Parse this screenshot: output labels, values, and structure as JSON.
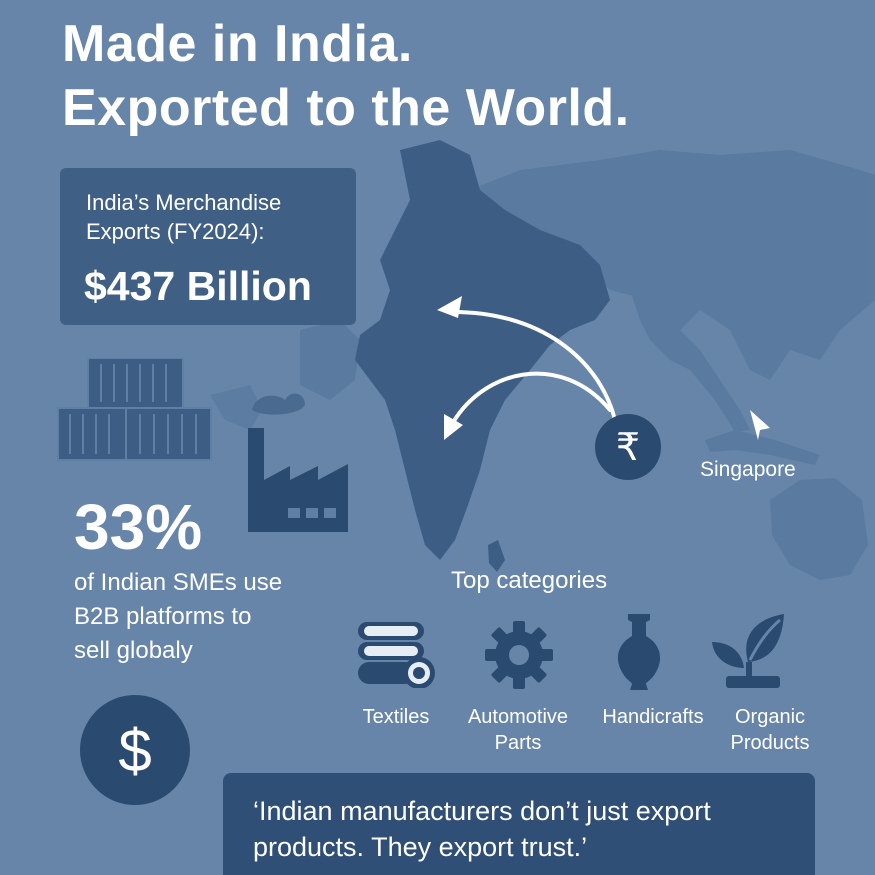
{
  "headline": {
    "line1": "Made in India.",
    "line2": "Exported to the World."
  },
  "exports_card": {
    "label_line1": "India’s Merchandise",
    "label_line2": "Exports (FY2024):",
    "value": "$437 Billion"
  },
  "sme_stat": {
    "percent": "33%",
    "line1": "of Indian SMEs use",
    "line2": "B2B platforms to",
    "line3": "sell globaly"
  },
  "map": {
    "location_label": "Singapore",
    "currency_badge": "₹"
  },
  "categories": {
    "heading": "Top categories",
    "items": [
      {
        "label_line1": "Textiles",
        "label_line2": "",
        "icon": "textile-rolls-icon"
      },
      {
        "label_line1": "Automotive",
        "label_line2": "Parts",
        "icon": "gear-icon"
      },
      {
        "label_line1": "Handicrafts",
        "label_line2": "",
        "icon": "vase-icon"
      },
      {
        "label_line1": "Organic",
        "label_line2": "Products",
        "icon": "leaf-icon"
      }
    ]
  },
  "dollar_badge": "$",
  "quote": {
    "line1": "‘Indian manufacturers don’t just export",
    "line2": "products. They export trust.’"
  },
  "colors": {
    "background": "#6785a8",
    "map_dark": "#3e5d84",
    "map_light": "#5a7aa0",
    "card": "#3f5f85",
    "quote_card": "#2f4f76",
    "icon_navy": "#2b4a70"
  }
}
